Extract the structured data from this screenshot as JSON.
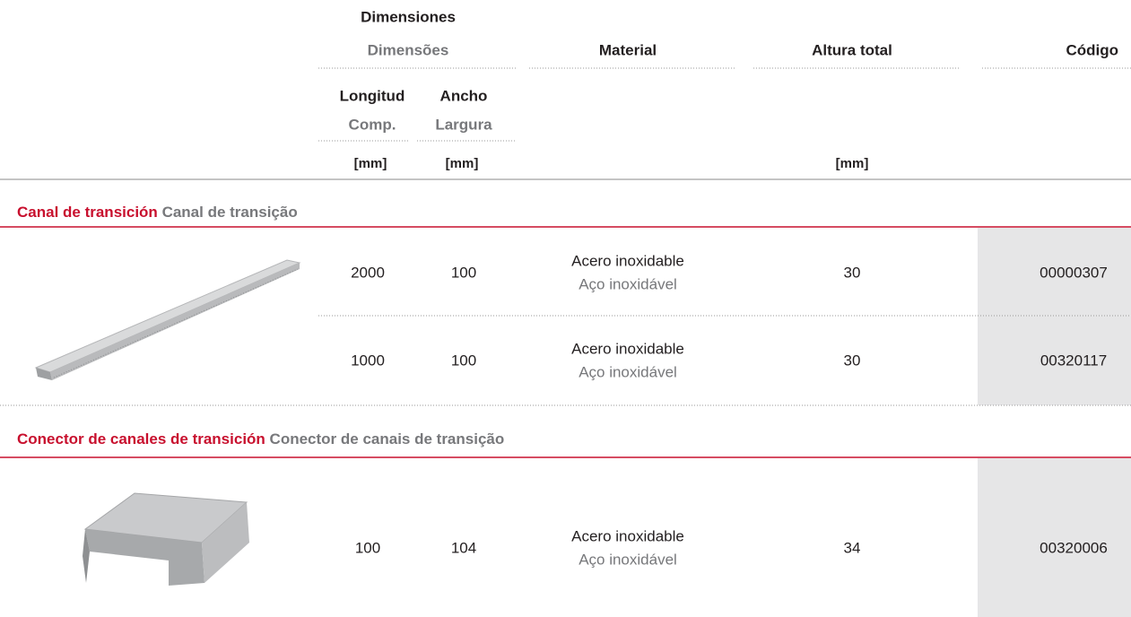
{
  "header": {
    "dimensions_es": "Dimensiones",
    "dimensions_pt": "Dimensões",
    "material": "Material",
    "height": "Altura total",
    "code": "Código",
    "length_es": "Longitud",
    "length_pt": "Comp.",
    "width_es": "Ancho",
    "width_pt": "Largura",
    "units": [
      "[mm]",
      "[mm]",
      "[mm]"
    ]
  },
  "sections": [
    {
      "title_es": "Canal de transición",
      "title_pt": "Canal de transição",
      "rows": [
        {
          "length": 2000,
          "width": 100,
          "material_es": "Acero inoxidable",
          "material_pt": "Aço inoxidável",
          "height": 30,
          "code": "00000307"
        },
        {
          "length": 1000,
          "width": 100,
          "material_es": "Acero inoxidable",
          "material_pt": "Aço inoxidável",
          "height": 30,
          "code": "00320117"
        }
      ]
    },
    {
      "title_es": "Conector de canales de transición",
      "title_pt": "Conector de canais de transição",
      "rows": [
        {
          "length": 100,
          "width": 104,
          "material_es": "Acero inoxidable",
          "material_pt": "Aço inoxidável",
          "height": 34,
          "code": "00320006"
        }
      ]
    }
  ]
}
